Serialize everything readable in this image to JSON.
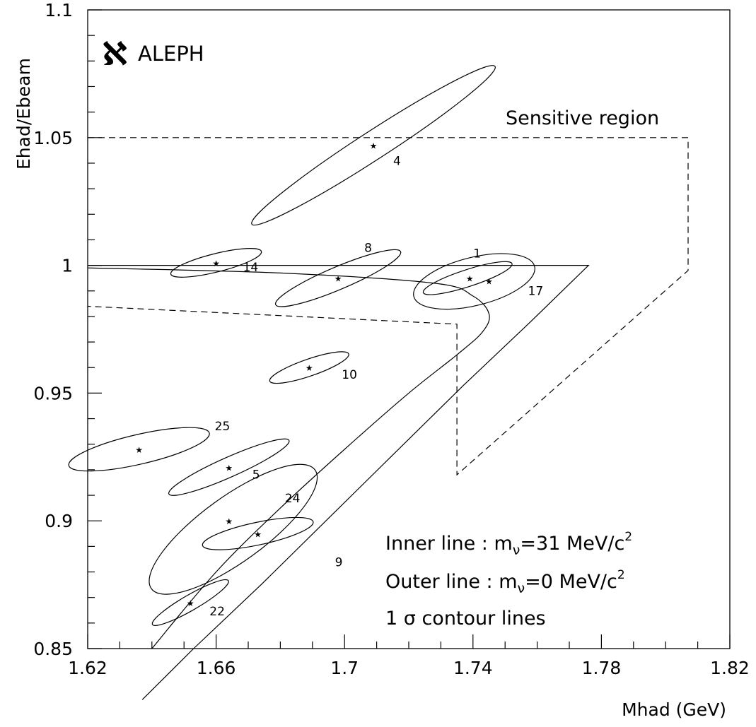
{
  "chart_data": {
    "type": "scatter",
    "title": "",
    "xlabel": "Mhad (GeV)",
    "ylabel": "Ehad/Ebeam",
    "xlim": [
      1.62,
      1.82
    ],
    "ylim": [
      0.85,
      1.1
    ],
    "xticks": [
      "1.62",
      "1.66",
      "1.7",
      "1.74",
      "1.78",
      "1.82"
    ],
    "yticks": [
      "0.85",
      "0.9",
      "0.95",
      "1",
      "1.05",
      "1.1"
    ],
    "logo": {
      "glyph": "ℵ",
      "text": "ALEPH"
    },
    "region_label": "Sensitive region",
    "annotations": {
      "inner_line": "Inner line : m",
      "inner_nu": "ν",
      "inner_val": "=31 MeV/c",
      "outer_line": "Outer line : m",
      "outer_nu": "ν",
      "outer_val": "=0 MeV/c",
      "sup": "2",
      "contour": "1 σ contour lines"
    },
    "events": [
      {
        "id": "4",
        "x": 1.709,
        "y": 1.047
      },
      {
        "id": "14",
        "x": 1.66,
        "y": 1.001
      },
      {
        "id": "8",
        "x": 1.698,
        "y": 0.995
      },
      {
        "id": "1",
        "x": 1.739,
        "y": 0.995
      },
      {
        "id": "17",
        "x": 1.745,
        "y": 0.994
      },
      {
        "id": "10",
        "x": 1.689,
        "y": 0.96
      },
      {
        "id": "25",
        "x": 1.636,
        "y": 0.928
      },
      {
        "id": "5",
        "x": 1.664,
        "y": 0.921
      },
      {
        "id": "24",
        "x": 1.664,
        "y": 0.9
      },
      {
        "id": "9",
        "x": 1.673,
        "y": 0.895
      },
      {
        "id": "22",
        "x": 1.652,
        "y": 0.868
      }
    ],
    "series": [
      {
        "name": "Inner line",
        "x": [
          1.776,
          1.758,
          1.737,
          1.716,
          1.695,
          1.674,
          1.653,
          1.637
        ],
        "y": [
          1.0,
          0.978,
          0.953,
          0.927,
          0.901,
          0.875,
          0.85,
          0.83
        ]
      },
      {
        "name": "Outer line",
        "x": [
          1.62,
          1.68,
          1.728,
          1.74,
          1.745,
          1.743,
          1.735,
          1.72,
          1.7,
          1.68,
          1.66,
          1.64
        ],
        "y": [
          0.999,
          0.997,
          0.993,
          0.988,
          0.981,
          0.974,
          0.965,
          0.95,
          0.928,
          0.905,
          0.88,
          0.85
        ]
      },
      {
        "name": "Sensitive region",
        "x": [
          1.62,
          1.807,
          1.807,
          1.735,
          1.735,
          1.62
        ],
        "y": [
          1.05,
          1.05,
          0.998,
          0.918,
          0.977,
          0.984
        ]
      }
    ],
    "grid": false,
    "legend": "bottom-right"
  }
}
